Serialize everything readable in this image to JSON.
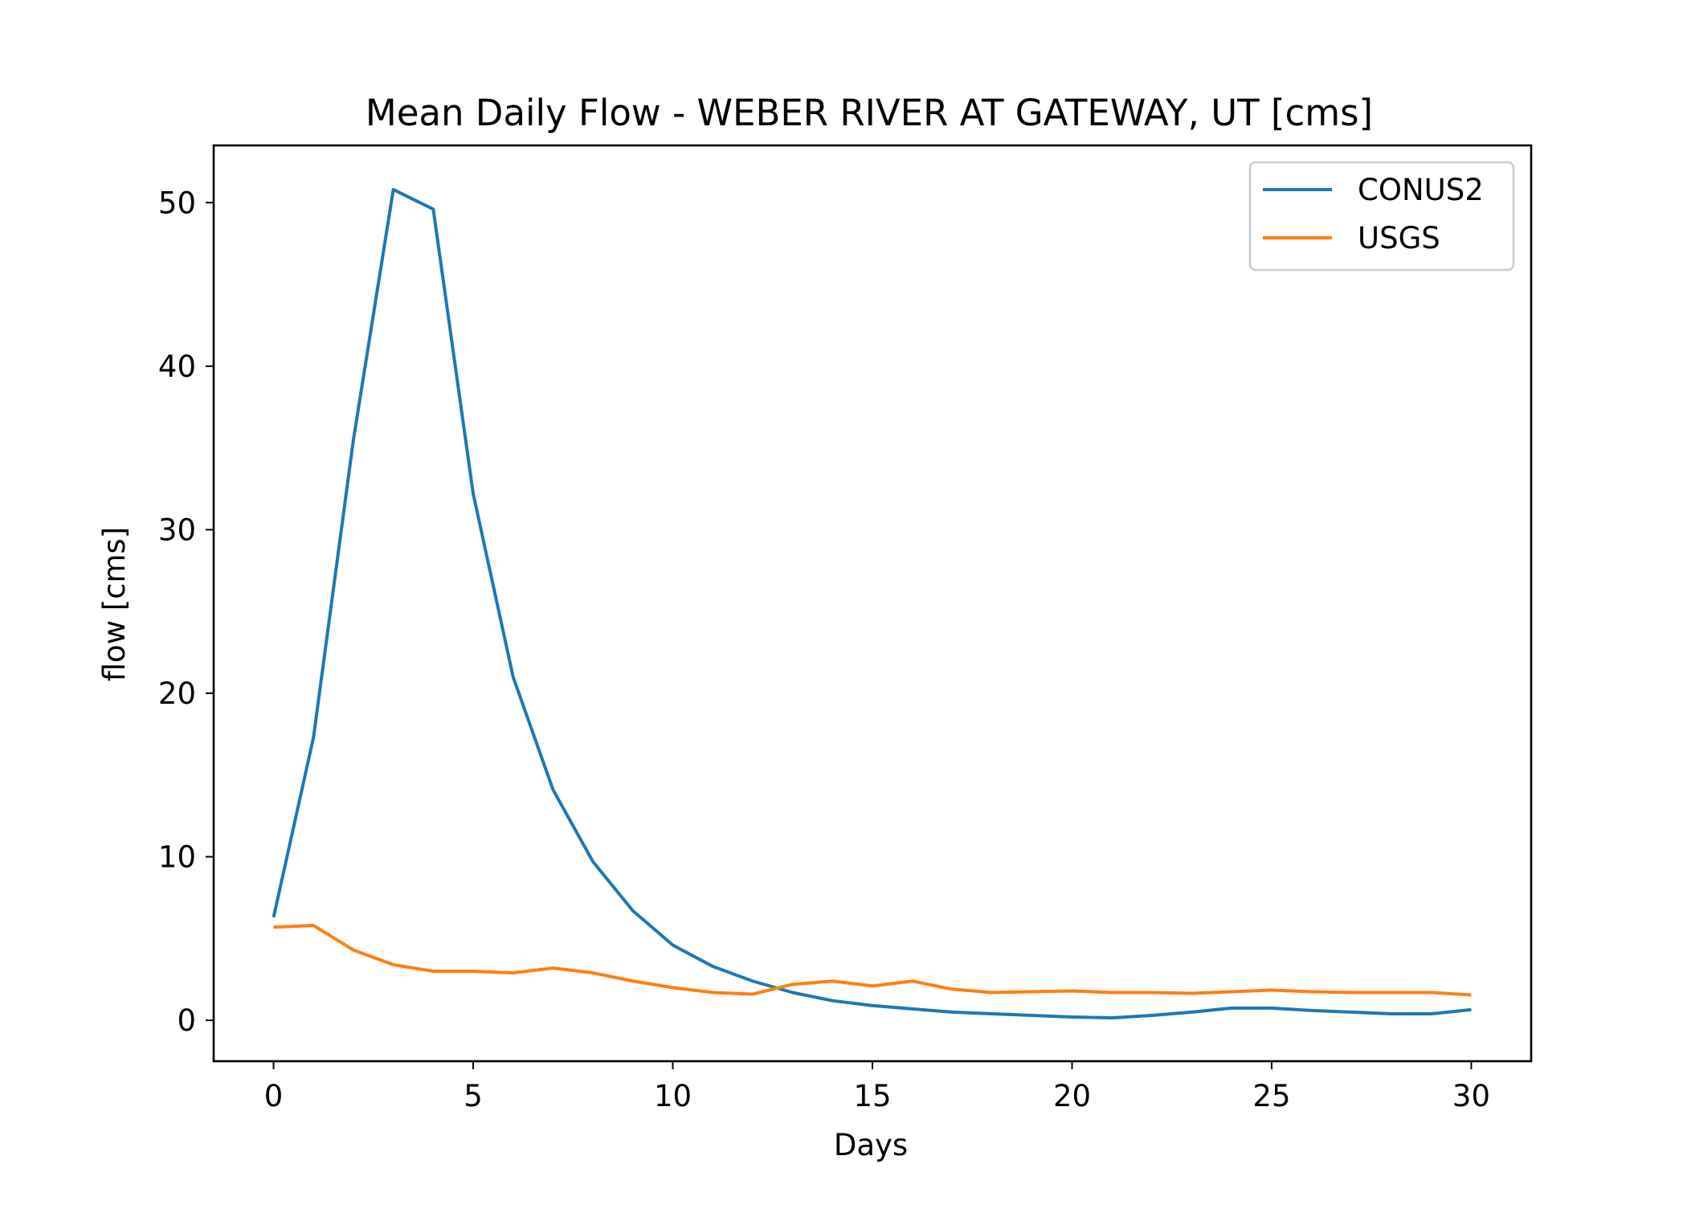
{
  "chart_data": {
    "type": "line",
    "title": "Mean Daily Flow - WEBER RIVER AT GATEWAY, UT [cms]",
    "xlabel": "Days",
    "ylabel": "flow [cms]",
    "xlim": [
      -1.5,
      31.5
    ],
    "ylim": [
      -2.5,
      53.5
    ],
    "xticks": [
      0,
      5,
      10,
      15,
      20,
      25,
      30
    ],
    "yticks": [
      0,
      10,
      20,
      30,
      40,
      50
    ],
    "grid": false,
    "legend_position": "upper right",
    "x": [
      0,
      1,
      2,
      3,
      4,
      5,
      6,
      7,
      8,
      9,
      10,
      11,
      12,
      13,
      14,
      15,
      16,
      17,
      18,
      19,
      20,
      21,
      22,
      23,
      24,
      25,
      26,
      27,
      28,
      29,
      30
    ],
    "series": [
      {
        "name": "CONUS2",
        "color": "#1f77b4",
        "values": [
          6.3,
          17.3,
          35.5,
          50.8,
          49.6,
          32.2,
          21.0,
          14.1,
          9.7,
          6.7,
          4.6,
          3.3,
          2.4,
          1.7,
          1.2,
          0.9,
          0.7,
          0.5,
          0.4,
          0.3,
          0.2,
          0.15,
          0.3,
          0.5,
          0.75,
          0.75,
          0.6,
          0.5,
          0.4,
          0.4,
          0.65
        ]
      },
      {
        "name": "USGS",
        "color": "#ff7f0e",
        "values": [
          5.7,
          5.8,
          4.3,
          3.4,
          3.0,
          3.0,
          2.9,
          3.2,
          2.9,
          2.4,
          2.0,
          1.7,
          1.6,
          2.2,
          2.4,
          2.1,
          2.4,
          1.9,
          1.7,
          1.75,
          1.8,
          1.7,
          1.7,
          1.65,
          1.75,
          1.85,
          1.75,
          1.7,
          1.7,
          1.7,
          1.55
        ]
      }
    ]
  }
}
